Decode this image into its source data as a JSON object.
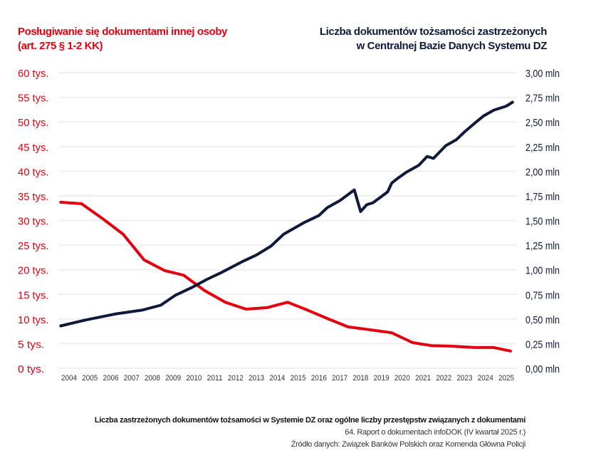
{
  "chart_data": {
    "type": "line",
    "title_left": [
      "Posługiwanie się dokumentami innej osoby",
      "(art. 275 § 1-2 KK)"
    ],
    "title_right": [
      "Liczba dokumentów tożsamości zastrzeżonych",
      "w Centralnej Bazie Danych Systemu DZ"
    ],
    "x_ticks": [
      "2004",
      "2005",
      "2006",
      "2007",
      "2008",
      "2009",
      "2010",
      "2011",
      "2012",
      "2013",
      "2014",
      "2015",
      "2016",
      "2017",
      "2018",
      "2019",
      "2020",
      "2021",
      "2022",
      "2023",
      "2024",
      "2025"
    ],
    "y_left": {
      "unit": "tys.",
      "range": [
        0,
        60
      ],
      "ticks": [
        "0 tys.",
        "5 tys.",
        "10 tys.",
        "15 tys.",
        "20 tys.",
        "25 tys.",
        "30 tys.",
        "35 tys.",
        "40 tys.",
        "45 tys.",
        "50 tys.",
        "55 tys.",
        "60 tys."
      ]
    },
    "y_right": {
      "unit": "mln",
      "range": [
        0,
        3
      ],
      "ticks": [
        "0,00 mln",
        "0,25 mln",
        "0,50 mln",
        "0,75 mln",
        "1,00 mln",
        "1,25 mln",
        "1,50 mln",
        "1,75 mln",
        "2,00 mln",
        "2,25 mln",
        "2,50 mln",
        "2,75 mln",
        "3,00 mln"
      ]
    },
    "grid": true,
    "series": [
      {
        "axis": "left",
        "color": "#e3000f",
        "x": [
          2003.6,
          2004.6,
          2005.6,
          2006.6,
          2007.6,
          2008.6,
          2009.5,
          2010.5,
          2011.5,
          2012.5,
          2013.5,
          2014.5,
          2015.4,
          2016.4,
          2017.4,
          2018.5,
          2019.5,
          2020.5,
          2021.4,
          2022.3,
          2023.5,
          2024.4,
          2025.2
        ],
        "y": [
          33.7,
          33.4,
          30.4,
          27.2,
          22.0,
          19.8,
          18.9,
          15.8,
          13.4,
          12.0,
          12.3,
          13.4,
          11.9,
          10.1,
          8.4,
          7.8,
          7.2,
          5.2,
          4.6,
          4.5,
          4.2,
          4.2,
          3.5
        ]
      },
      {
        "axis": "right",
        "color": "#0f1a3a",
        "x": [
          2003.6,
          2004.8,
          2006.2,
          2007.5,
          2008.4,
          2009.1,
          2009.9,
          2010.6,
          2011.3,
          2012.3,
          2013.0,
          2013.7,
          2014.3,
          2015.3,
          2016.0,
          2016.4,
          2017.0,
          2017.7,
          2018.0,
          2018.3,
          2018.6,
          2019.3,
          2019.5,
          2019.8,
          2020.2,
          2020.8,
          2021.2,
          2021.5,
          2022.1,
          2022.6,
          2023.0,
          2023.5,
          2023.9,
          2024.4,
          2025.0,
          2025.3
        ],
        "y": [
          0.43,
          0.49,
          0.55,
          0.59,
          0.64,
          0.74,
          0.82,
          0.9,
          0.97,
          1.08,
          1.15,
          1.24,
          1.36,
          1.48,
          1.55,
          1.63,
          1.7,
          1.81,
          1.59,
          1.66,
          1.68,
          1.79,
          1.88,
          1.93,
          1.99,
          2.06,
          2.15,
          2.13,
          2.26,
          2.32,
          2.4,
          2.49,
          2.56,
          2.62,
          2.66,
          2.7
        ]
      }
    ]
  },
  "footer": {
    "title": "Liczba zastrzeżonych dokumentów tożsamości w Systemie DZ oraz ogólne liczby przestępstw związanych z dokumentami",
    "report": "64. Raport o dokumentach infoDOK (IV kwartał 2025 r.)",
    "source": "Źródło danych: Związek Banków Polskich oraz Komenda Główna Policji"
  }
}
